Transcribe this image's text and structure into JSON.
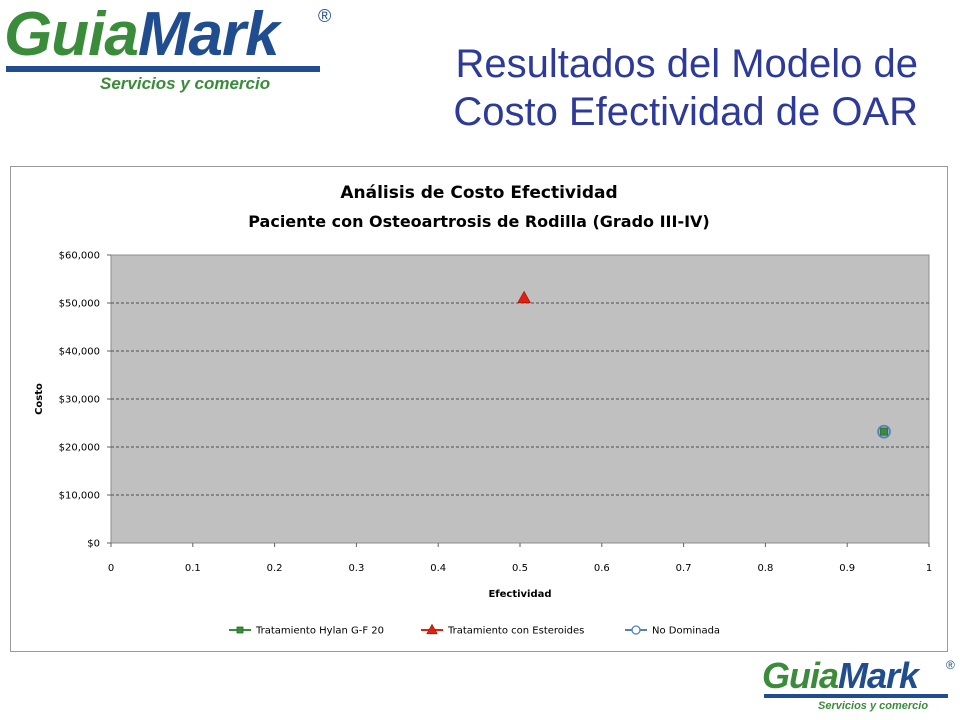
{
  "logo": {
    "word_a": "Guia",
    "word_b": "Mark",
    "registered": "®",
    "tagline": "Servicios y comercio"
  },
  "slide": {
    "title_line1": "Resultados del Modelo de",
    "title_line2": "Costo Efectividad de OAR"
  },
  "colors": {
    "title": "#2e3a9a",
    "plot_area": "#c0c0c0",
    "series_hylan": "#3a8c3a",
    "series_esteroides": "#e02010",
    "series_no_dominada": "#4f81bd"
  },
  "chart_data": {
    "type": "scatter",
    "title": "Análisis de Costo Efectividad",
    "subtitle": "Paciente con Osteoartrosis de Rodilla (Grado III-IV)",
    "xlabel": "Efectividad",
    "ylabel": "Costo",
    "xlim": [
      0,
      1
    ],
    "ylim": [
      0,
      60000
    ],
    "x_ticks": [
      "0",
      "0.1",
      "0.2",
      "0.3",
      "0.4",
      "0.5",
      "0.6",
      "0.7",
      "0.8",
      "0.9",
      "1"
    ],
    "y_ticks": [
      "$0",
      "$10,000",
      "$20,000",
      "$30,000",
      "$40,000",
      "$50,000",
      "$60,000"
    ],
    "grid": "horizontal dashed",
    "legend_position": "bottom",
    "series": [
      {
        "name": "Tratamiento Hylan G-F 20",
        "marker": "square",
        "color": "#3a8c3a",
        "points": [
          {
            "x": 0.945,
            "y": 23200
          }
        ]
      },
      {
        "name": "Tratamiento con Esteroides",
        "marker": "triangle",
        "color": "#e02010",
        "points": [
          {
            "x": 0.505,
            "y": 51000
          }
        ]
      },
      {
        "name": "No Dominada",
        "marker": "circle",
        "color": "#4f81bd",
        "points": [
          {
            "x": 0.945,
            "y": 23200
          }
        ]
      }
    ]
  }
}
